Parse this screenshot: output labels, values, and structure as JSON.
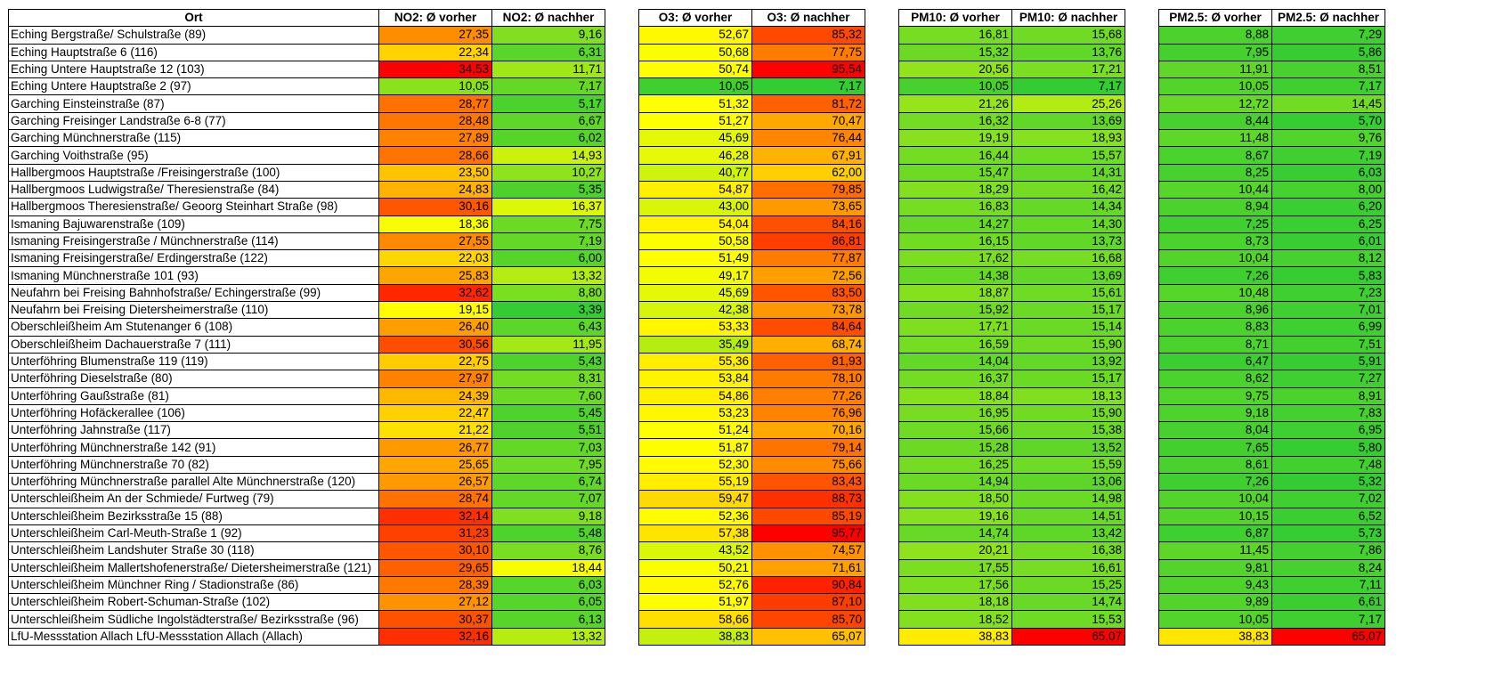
{
  "headers": {
    "ort": "Ort",
    "no2_before": "NO2: Ø vorher",
    "no2_after": "NO2: Ø nachher",
    "o3_before": "O3:  Ø vorher",
    "o3_after": "O3:  Ø nachher",
    "pm10_before": "PM10:  Ø vorher",
    "pm10_after": "PM10:  Ø nachher",
    "pm25_before": "PM2.5:  Ø vorher",
    "pm25_after": "PM2.5: Ø nachher"
  },
  "rows": [
    {
      "ort": "Eching Bergstraße/ Schulstraße (89)",
      "no2": [
        "27,35",
        "9,16"
      ],
      "o3": [
        "52,67",
        "85,32"
      ],
      "pm10": [
        "16,81",
        "15,68"
      ],
      "pm25": [
        "8,88",
        "7,29"
      ]
    },
    {
      "ort": "Eching Hauptstraße 6 (116)",
      "no2": [
        "22,34",
        "6,31"
      ],
      "o3": [
        "50,68",
        "77,75"
      ],
      "pm10": [
        "15,32",
        "13,76"
      ],
      "pm25": [
        "7,95",
        "5,86"
      ]
    },
    {
      "ort": "Eching Untere Hauptstraße 12 (103)",
      "no2": [
        "34,53",
        "11,71"
      ],
      "o3": [
        "50,74",
        "95,54"
      ],
      "pm10": [
        "20,56",
        "17,21"
      ],
      "pm25": [
        "11,91",
        "8,51"
      ]
    },
    {
      "ort": "Eching Untere Hauptstraße 2 (97)",
      "no2": [
        "10,05",
        "7,17"
      ],
      "o3": [
        "10,05",
        "7,17"
      ],
      "pm10": [
        "10,05",
        "7,17"
      ],
      "pm25": [
        "10,05",
        "7,17"
      ]
    },
    {
      "ort": "Garching Einsteinstraße (87)",
      "no2": [
        "28,77",
        "5,17"
      ],
      "o3": [
        "51,32",
        "81,72"
      ],
      "pm10": [
        "21,26",
        "25,26"
      ],
      "pm25": [
        "12,72",
        "14,45"
      ]
    },
    {
      "ort": "Garching Freisinger Landstraße 6-8 (77)",
      "no2": [
        "28,48",
        "6,67"
      ],
      "o3": [
        "51,27",
        "70,47"
      ],
      "pm10": [
        "16,32",
        "13,69"
      ],
      "pm25": [
        "8,44",
        "5,70"
      ]
    },
    {
      "ort": "Garching Münchnerstraße (115)",
      "no2": [
        "27,89",
        "6,02"
      ],
      "o3": [
        "45,69",
        "76,44"
      ],
      "pm10": [
        "19,19",
        "18,93"
      ],
      "pm25": [
        "11,48",
        "9,76"
      ]
    },
    {
      "ort": "Garching Voithstraße (95)",
      "no2": [
        "28,66",
        "14,93"
      ],
      "o3": [
        "46,28",
        "67,91"
      ],
      "pm10": [
        "16,44",
        "15,57"
      ],
      "pm25": [
        "8,67",
        "7,19"
      ]
    },
    {
      "ort": "Hallbergmoos Hauptstraße /Freisingerstraße (100)",
      "no2": [
        "23,50",
        "10,27"
      ],
      "o3": [
        "40,77",
        "62,00"
      ],
      "pm10": [
        "15,47",
        "14,31"
      ],
      "pm25": [
        "8,25",
        "6,03"
      ]
    },
    {
      "ort": "Hallbergmoos Ludwigstraße/ Theresienstraße (84)",
      "no2": [
        "24,83",
        "5,35"
      ],
      "o3": [
        "54,87",
        "79,85"
      ],
      "pm10": [
        "18,29",
        "16,42"
      ],
      "pm25": [
        "10,44",
        "8,00"
      ]
    },
    {
      "ort": "Hallbergmoos Theresienstraße/ Geoorg Steinhart Straße (98)",
      "no2": [
        "30,16",
        "16,37"
      ],
      "o3": [
        "43,00",
        "73,65"
      ],
      "pm10": [
        "16,83",
        "14,34"
      ],
      "pm25": [
        "8,94",
        "6,20"
      ]
    },
    {
      "ort": "Ismaning Bajuwarenstraße (109)",
      "no2": [
        "18,36",
        "7,75"
      ],
      "o3": [
        "54,04",
        "84,16"
      ],
      "pm10": [
        "14,27",
        "14,30"
      ],
      "pm25": [
        "7,25",
        "6,25"
      ]
    },
    {
      "ort": "Ismaning Freisingerstraße / Münchnerstraße (114)",
      "no2": [
        "27,55",
        "7,19"
      ],
      "o3": [
        "50,58",
        "86,81"
      ],
      "pm10": [
        "16,15",
        "13,73"
      ],
      "pm25": [
        "8,73",
        "6,01"
      ]
    },
    {
      "ort": "Ismaning Freisingerstraße/ Erdingerstraße (122)",
      "no2": [
        "22,03",
        "6,00"
      ],
      "o3": [
        "51,49",
        "77,87"
      ],
      "pm10": [
        "17,62",
        "16,68"
      ],
      "pm25": [
        "10,04",
        "8,12"
      ]
    },
    {
      "ort": "Ismaning Münchnerstraße 101 (93)",
      "no2": [
        "25,83",
        "13,32"
      ],
      "o3": [
        "49,17",
        "72,56"
      ],
      "pm10": [
        "14,38",
        "13,69"
      ],
      "pm25": [
        "7,26",
        "5,83"
      ]
    },
    {
      "ort": "Neufahrn bei Freising Bahnhofstraße/ Echingerstraße (99)",
      "no2": [
        "32,62",
        "8,80"
      ],
      "o3": [
        "45,69",
        "83,50"
      ],
      "pm10": [
        "18,87",
        "15,61"
      ],
      "pm25": [
        "10,48",
        "7,23"
      ]
    },
    {
      "ort": "Neufahrn bei Freising Dietersheimerstraße (110)",
      "no2": [
        "19,15",
        "3,39"
      ],
      "o3": [
        "42,38",
        "73,78"
      ],
      "pm10": [
        "15,92",
        "15,17"
      ],
      "pm25": [
        "8,96",
        "7,01"
      ]
    },
    {
      "ort": "Oberschleißheim Am Stutenanger 6 (108)",
      "no2": [
        "26,40",
        "6,43"
      ],
      "o3": [
        "53,33",
        "84,64"
      ],
      "pm10": [
        "17,71",
        "15,14"
      ],
      "pm25": [
        "8,83",
        "6,99"
      ]
    },
    {
      "ort": "Oberschleißheim Dachauerstraße 7 (111)",
      "no2": [
        "30,56",
        "11,95"
      ],
      "o3": [
        "35,49",
        "68,74"
      ],
      "pm10": [
        "16,59",
        "15,90"
      ],
      "pm25": [
        "8,71",
        "7,51"
      ]
    },
    {
      "ort": "Unterföhring Blumenstraße 119 (119)",
      "no2": [
        "22,75",
        "5,43"
      ],
      "o3": [
        "55,36",
        "81,93"
      ],
      "pm10": [
        "14,04",
        "13,92"
      ],
      "pm25": [
        "6,47",
        "5,91"
      ]
    },
    {
      "ort": "Unterföhring Dieselstraße (80)",
      "no2": [
        "27,97",
        "8,31"
      ],
      "o3": [
        "53,84",
        "78,10"
      ],
      "pm10": [
        "16,37",
        "15,17"
      ],
      "pm25": [
        "8,62",
        "7,27"
      ]
    },
    {
      "ort": "Unterföhring Gaußstraße (81)",
      "no2": [
        "24,39",
        "7,60"
      ],
      "o3": [
        "54,86",
        "77,26"
      ],
      "pm10": [
        "18,84",
        "18,13"
      ],
      "pm25": [
        "9,75",
        "8,91"
      ]
    },
    {
      "ort": "Unterföhring Hofäckerallee (106)",
      "no2": [
        "22,47",
        "5,45"
      ],
      "o3": [
        "53,23",
        "76,96"
      ],
      "pm10": [
        "16,95",
        "15,90"
      ],
      "pm25": [
        "9,18",
        "7,83"
      ]
    },
    {
      "ort": "Unterföhring Jahnstraße (117)",
      "no2": [
        "21,22",
        "5,51"
      ],
      "o3": [
        "51,24",
        "70,16"
      ],
      "pm10": [
        "15,66",
        "15,38"
      ],
      "pm25": [
        "8,04",
        "6,95"
      ]
    },
    {
      "ort": "Unterföhring Münchnerstraße 142 (91)",
      "no2": [
        "26,77",
        "7,03"
      ],
      "o3": [
        "51,87",
        "79,14"
      ],
      "pm10": [
        "15,28",
        "13,52"
      ],
      "pm25": [
        "7,65",
        "5,80"
      ]
    },
    {
      "ort": "Unterföhring Münchnerstraße 70 (82)",
      "no2": [
        "25,65",
        "7,95"
      ],
      "o3": [
        "52,30",
        "75,66"
      ],
      "pm10": [
        "16,25",
        "15,59"
      ],
      "pm25": [
        "8,61",
        "7,48"
      ]
    },
    {
      "ort": "Unterföhring Münchnerstraße parallel Alte Münchnerstraße (120)",
      "no2": [
        "26,57",
        "6,74"
      ],
      "o3": [
        "55,19",
        "83,43"
      ],
      "pm10": [
        "14,94",
        "13,06"
      ],
      "pm25": [
        "7,26",
        "5,32"
      ]
    },
    {
      "ort": "Unterschleißheim An der Schmiede/ Furtweg (79)",
      "no2": [
        "28,74",
        "7,07"
      ],
      "o3": [
        "59,47",
        "88,73"
      ],
      "pm10": [
        "18,50",
        "14,98"
      ],
      "pm25": [
        "10,04",
        "7,02"
      ]
    },
    {
      "ort": "Unterschleißheim Bezirksstraße 15 (88)",
      "no2": [
        "32,14",
        "9,18"
      ],
      "o3": [
        "52,36",
        "85,19"
      ],
      "pm10": [
        "19,16",
        "14,51"
      ],
      "pm25": [
        "10,15",
        "6,52"
      ]
    },
    {
      "ort": "Unterschleißheim Carl-Meuth-Straße 1 (92)",
      "no2": [
        "31,23",
        "5,48"
      ],
      "o3": [
        "57,38",
        "95,77"
      ],
      "pm10": [
        "14,74",
        "13,42"
      ],
      "pm25": [
        "6,87",
        "5,73"
      ]
    },
    {
      "ort": "Unterschleißheim Landshuter Straße 30 (118)",
      "no2": [
        "30,10",
        "8,76"
      ],
      "o3": [
        "43,52",
        "74,57"
      ],
      "pm10": [
        "20,21",
        "16,38"
      ],
      "pm25": [
        "11,45",
        "7,86"
      ]
    },
    {
      "ort": "Unterschleißheim Mallertshofenerstraße/ Dietersheimerstraße (121)",
      "no2": [
        "29,65",
        "18,44"
      ],
      "o3": [
        "50,21",
        "71,61"
      ],
      "pm10": [
        "17,55",
        "16,61"
      ],
      "pm25": [
        "9,81",
        "8,24"
      ]
    },
    {
      "ort": "Unterschleißheim Münchner Ring / Stadionstraße (86)",
      "no2": [
        "28,39",
        "6,03"
      ],
      "o3": [
        "52,76",
        "90,84"
      ],
      "pm10": [
        "17,56",
        "15,25"
      ],
      "pm25": [
        "9,43",
        "7,11"
      ]
    },
    {
      "ort": "Unterschleißheim Robert-Schuman-Straße (102)",
      "no2": [
        "27,12",
        "6,05"
      ],
      "o3": [
        "51,97",
        "87,10"
      ],
      "pm10": [
        "18,18",
        "14,74"
      ],
      "pm25": [
        "9,89",
        "6,61"
      ]
    },
    {
      "ort": "Unterschleißheim Südliche Ingolstädterstraße/ Bezirksstraße (96)",
      "no2": [
        "30,37",
        "6,13"
      ],
      "o3": [
        "58,66",
        "85,70"
      ],
      "pm10": [
        "18,52",
        "15,53"
      ],
      "pm25": [
        "10,05",
        "7,17"
      ]
    },
    {
      "ort": "LfU-Messstation Allach LfU-Messstation Allach (Allach)",
      "no2": [
        "32,16",
        "13,32"
      ],
      "o3": [
        "38,83",
        "65,07"
      ],
      "pm10": [
        "38,83",
        "65,07"
      ],
      "pm25": [
        "38,83",
        "65,07"
      ]
    }
  ],
  "color_scale": {
    "green": "#33cc33",
    "yellow": "#ffff00",
    "orange": "#ff9900",
    "red": "#ff0000"
  }
}
